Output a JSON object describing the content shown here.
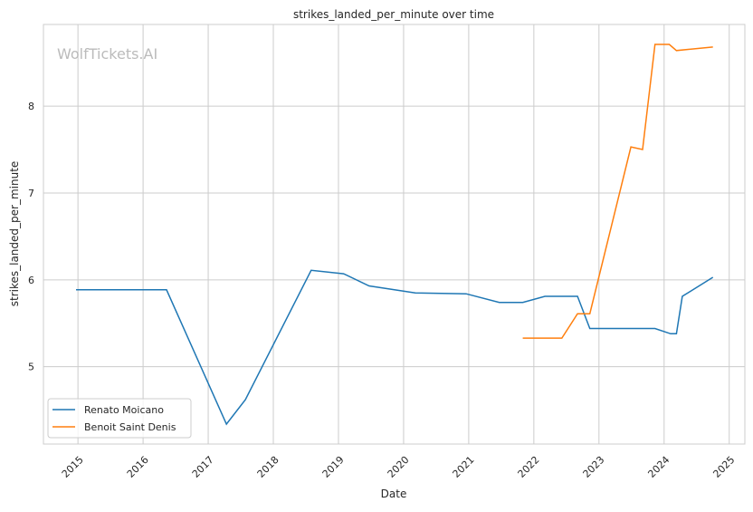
{
  "chart_data": {
    "type": "line",
    "title": "strikes_landed_per_minute over time",
    "xlabel": "Date",
    "ylabel": "strikes_landed_per_minute",
    "watermark": "WolfTickets.AI",
    "xlim": [
      2014.47,
      2025.24
    ],
    "ylim": [
      4.11,
      8.94
    ],
    "xticks": [
      2015,
      2016,
      2017,
      2018,
      2019,
      2020,
      2021,
      2022,
      2023,
      2024,
      2025
    ],
    "xtick_labels": [
      "2015",
      "2016",
      "2017",
      "2018",
      "2019",
      "2020",
      "2021",
      "2022",
      "2023",
      "2024",
      "2025"
    ],
    "yticks": [
      5,
      6,
      7,
      8
    ],
    "ytick_labels": [
      "5",
      "6",
      "7",
      "8"
    ],
    "grid": true,
    "legend_position": "lower-left",
    "series": [
      {
        "name": "Renato Moicano",
        "color": "#1f77b4",
        "x": [
          2014.97,
          2016.36,
          2017.28,
          2017.57,
          2018.58,
          2019.08,
          2019.47,
          2020.18,
          2020.96,
          2021.47,
          2021.83,
          2022.17,
          2022.67,
          2022.86,
          2023.86,
          2024.1,
          2024.19,
          2024.28,
          2024.75
        ],
        "y": [
          5.885,
          5.885,
          4.34,
          4.62,
          6.11,
          6.07,
          5.93,
          5.85,
          5.84,
          5.74,
          5.74,
          5.81,
          5.81,
          5.44,
          5.44,
          5.38,
          5.38,
          5.81,
          6.03
        ]
      },
      {
        "name": "Benoit Saint Denis",
        "color": "#ff7f0e",
        "x": [
          2021.83,
          2022.43,
          2022.67,
          2022.86,
          2023.49,
          2023.67,
          2023.86,
          2024.08,
          2024.19,
          2024.75
        ],
        "y": [
          5.33,
          5.33,
          5.61,
          5.61,
          7.53,
          7.5,
          8.71,
          8.71,
          8.64,
          8.68
        ]
      }
    ]
  }
}
